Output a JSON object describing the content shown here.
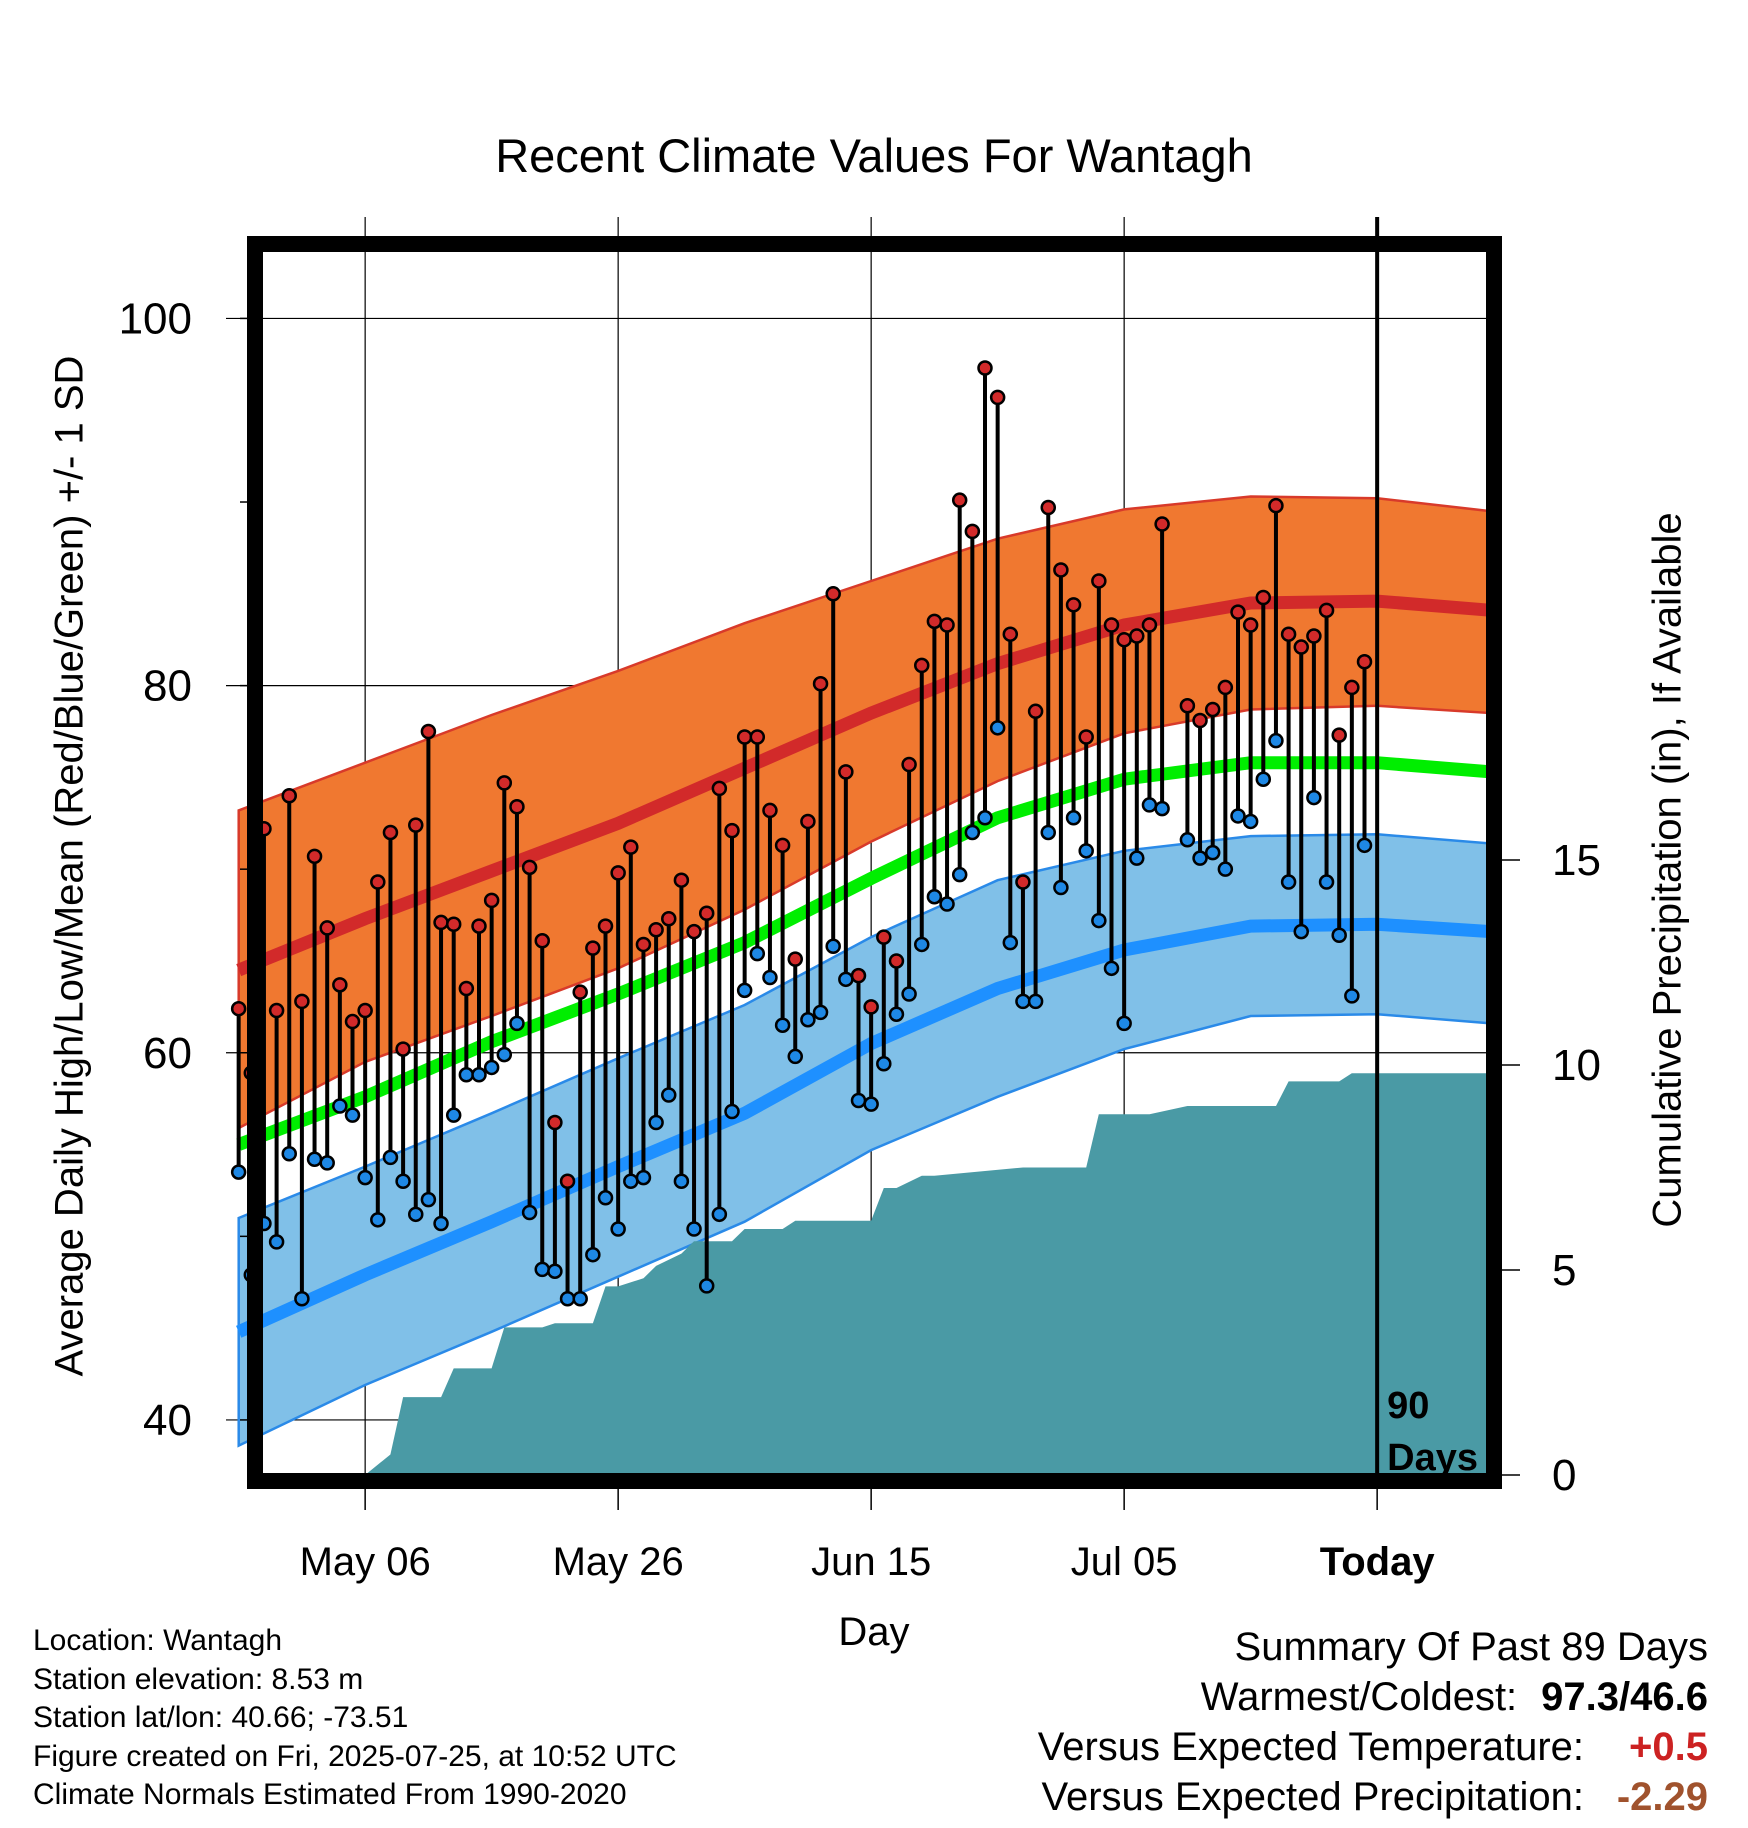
{
  "chart_data": {
    "type": "line",
    "title": "Recent Climate Values For Wantagh",
    "xlabel": "Day",
    "ylabel": "Average Daily High/Low/Mean (Red/Blue/Green) +/- 1 SD",
    "y2label": "Cumulative Precipitation (in), If Available",
    "ylim": [
      37,
      104
    ],
    "y2lim": [
      0,
      30
    ],
    "yticks": [
      100,
      80,
      60,
      40
    ],
    "y2ticks": [
      15,
      10,
      5,
      0
    ],
    "xtick_labels": [
      "May 06",
      "May 26",
      "Jun 15",
      "Jul 05",
      "Today"
    ],
    "xtick_day_offsets": [
      -80,
      -60,
      -40,
      -20,
      0
    ],
    "xlim_day_offsets": [
      -91,
      9
    ],
    "today_label": "90\nDays",
    "grid": true,
    "colors": {
      "high_band": "#f07830",
      "high_line": "#d22a2a",
      "low_band": "#80c0e8",
      "low_line": "#1e90ff",
      "mean_line": "#00ee00",
      "precip": "#4a9aa5",
      "high_point": "#d22a2a",
      "low_point": "#1e88e5"
    },
    "normals": {
      "day_offsets": [
        -90,
        -80,
        -70,
        -60,
        -50,
        -40,
        -30,
        -20,
        -10,
        0,
        9
      ],
      "high_mean": [
        64.5,
        67.3,
        69.9,
        72.5,
        75.5,
        78.5,
        81.2,
        83.3,
        84.5,
        84.6,
        84.1
      ],
      "high_upper": [
        73.2,
        75.8,
        78.4,
        80.8,
        83.4,
        85.7,
        88.0,
        89.6,
        90.3,
        90.2,
        89.5
      ],
      "high_lower": [
        55.9,
        59.5,
        62.0,
        64.6,
        67.8,
        71.5,
        74.8,
        77.4,
        78.7,
        78.9,
        78.5
      ],
      "mean_mean": [
        55.0,
        57.6,
        60.6,
        63.2,
        66.0,
        69.5,
        72.8,
        74.9,
        75.8,
        75.8,
        75.3
      ],
      "low_mean": [
        44.8,
        47.9,
        50.8,
        53.8,
        56.7,
        60.5,
        63.5,
        65.6,
        66.9,
        67.0,
        66.6
      ],
      "low_upper": [
        51.0,
        53.8,
        56.7,
        59.7,
        62.6,
        66.3,
        69.4,
        71.0,
        71.8,
        71.9,
        71.4
      ],
      "low_lower": [
        38.6,
        41.9,
        44.8,
        47.8,
        50.8,
        54.7,
        57.6,
        60.2,
        62.0,
        62.1,
        61.6
      ]
    },
    "series": [
      {
        "name": "High",
        "values": [
          62.4,
          58.9,
          72.2,
          62.3,
          74.0,
          62.8,
          70.7,
          66.8,
          63.7,
          61.7,
          62.3,
          69.3,
          72.0,
          60.2,
          72.4,
          77.5,
          67.1,
          67.0,
          63.5,
          66.9,
          68.3,
          74.7,
          73.4,
          70.1,
          66.1,
          56.2,
          53.0,
          63.3,
          65.7,
          66.9,
          69.8,
          71.2,
          65.9,
          66.7,
          67.3,
          69.4,
          66.6,
          67.6,
          74.4,
          72.1,
          77.2,
          77.2,
          73.2,
          71.3,
          65.1,
          72.6,
          80.1,
          85.0,
          75.3,
          64.2,
          62.5,
          66.3,
          65.0,
          75.7,
          81.1,
          83.5,
          83.3,
          90.1,
          88.4,
          97.3,
          95.7,
          82.8,
          69.3,
          78.6,
          89.7,
          86.3,
          84.4,
          77.2,
          85.7,
          83.3,
          82.5,
          82.7,
          83.3,
          88.8,
          null,
          78.9,
          78.1,
          78.7,
          79.9,
          84.0,
          83.3,
          84.8,
          89.8,
          82.8,
          82.1,
          82.7,
          84.1,
          77.3,
          79.9,
          81.3
        ]
      },
      {
        "name": "Low",
        "values": [
          53.5,
          47.9,
          50.7,
          49.7,
          54.5,
          46.6,
          54.2,
          54.0,
          57.1,
          56.6,
          53.2,
          50.9,
          54.3,
          53.0,
          51.2,
          52.0,
          50.7,
          56.6,
          58.8,
          58.8,
          59.2,
          59.9,
          61.6,
          51.3,
          48.2,
          48.1,
          46.6,
          46.6,
          49.0,
          52.1,
          50.4,
          53.0,
          53.2,
          56.2,
          57.7,
          53.0,
          50.4,
          47.3,
          51.2,
          56.8,
          63.4,
          65.4,
          64.1,
          61.5,
          59.8,
          61.8,
          62.2,
          65.8,
          64.0,
          57.4,
          57.2,
          59.4,
          62.1,
          63.2,
          65.9,
          68.5,
          68.1,
          69.7,
          72.0,
          72.8,
          77.7,
          66.0,
          62.8,
          62.8,
          72.0,
          69.0,
          72.8,
          71.0,
          67.2,
          64.6,
          61.6,
          70.6,
          73.5,
          73.3,
          null,
          71.6,
          70.6,
          70.9,
          70.0,
          72.9,
          72.6,
          74.9,
          77.0,
          69.3,
          66.6,
          73.9,
          69.3,
          66.4,
          63.1,
          71.3
        ]
      }
    ],
    "precip": {
      "day_offsets": [
        -91,
        -80,
        -78,
        -77,
        -74,
        -73,
        -70,
        -69,
        -66,
        -65,
        -62,
        -61,
        -60,
        -58,
        -57,
        -55,
        -54,
        -52,
        -51,
        -50,
        -47,
        -46,
        -45,
        -42,
        -40,
        -39,
        -38,
        -36,
        -35,
        -28,
        -27,
        -23,
        -22,
        -19,
        -18,
        -15,
        -14,
        -8,
        -7,
        -3,
        -2,
        9
      ],
      "values": [
        0,
        0,
        0.5,
        1.9,
        1.9,
        2.6,
        2.6,
        3.6,
        3.6,
        3.7,
        3.7,
        4.6,
        4.6,
        4.8,
        5.1,
        5.4,
        5.7,
        5.7,
        5.7,
        6.0,
        6.0,
        6.2,
        6.2,
        6.2,
        6.2,
        7.0,
        7.0,
        7.3,
        7.3,
        7.5,
        7.5,
        7.5,
        8.8,
        8.8,
        8.8,
        9.0,
        9.0,
        9.0,
        9.6,
        9.6,
        9.8,
        9.8
      ],
      "end_total": 9.8
    }
  },
  "info": {
    "location": "Location: Wantagh",
    "elevation": "Station elevation: 8.53 m",
    "latlon": "Station lat/lon: 40.66; -73.51",
    "created": "Figure created on Fri, 2025-07-25, at 10:52 UTC",
    "normals": "Climate Normals Estimated From 1990-2020"
  },
  "summary": {
    "title": "Summary Of Past 89 Days",
    "extremes_label": "Warmest/Coldest:",
    "extremes_value": "97.3/46.6",
    "temp_label": "Versus Expected Temperature:",
    "temp_value": "+0.5",
    "precip_label": "Versus Expected Precipitation:",
    "precip_value": "-2.29"
  }
}
